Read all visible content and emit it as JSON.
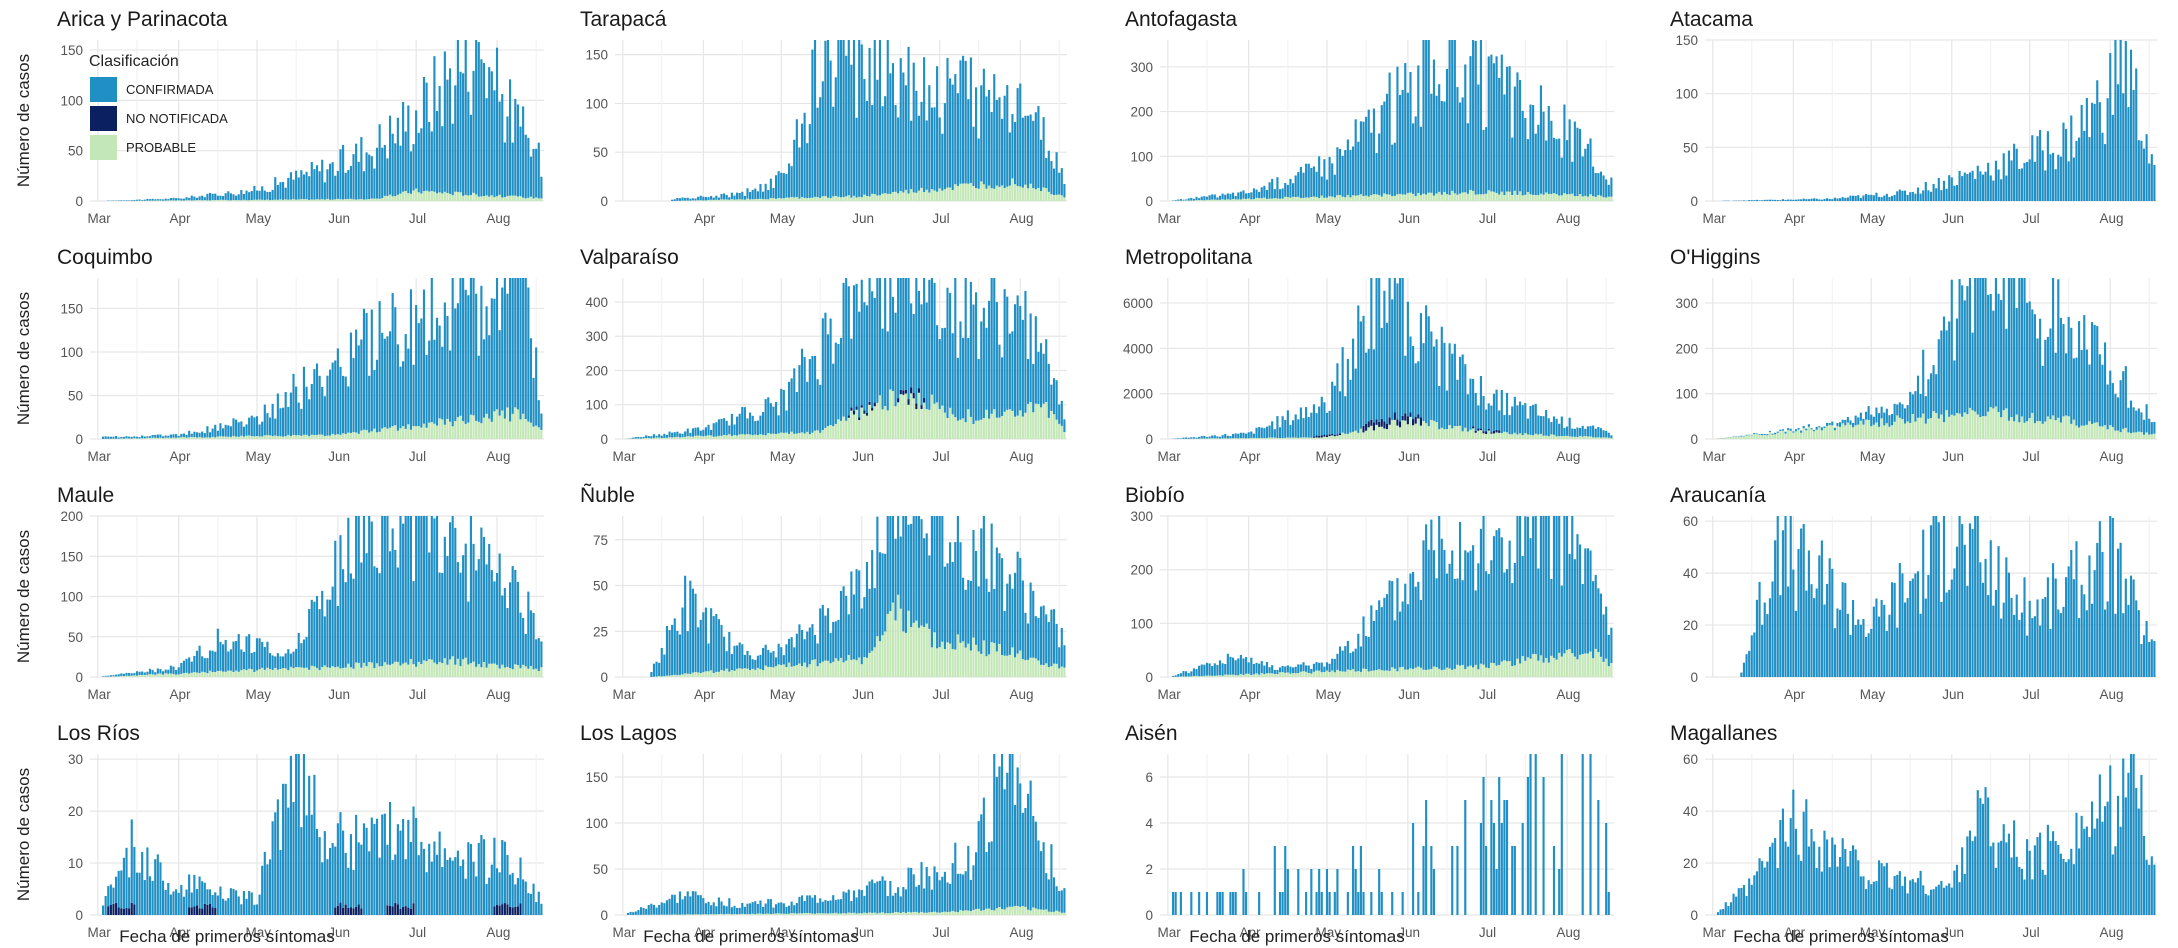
{
  "figure": {
    "ylabel": "Número de casos",
    "xlabel": "Fecha de primeros síntomas",
    "legend": {
      "title": "Clasificación",
      "placement": "inside top-left of first panel",
      "entries": [
        {
          "label": "CONFIRMADA",
          "color": "#1f8fc4"
        },
        {
          "label": "NO NOTIFICADA",
          "color": "#0b2060"
        },
        {
          "label": "PROBABLE",
          "color": "#c3e7b6"
        }
      ]
    },
    "colors": {
      "confirmada": "#1f8fc4",
      "no_notificada": "#0b2060",
      "probable": "#c3e7b6",
      "grid": "#e6e6e6"
    }
  },
  "chart_data": [
    {
      "type": "bar",
      "stacked": true,
      "title": "Arica y Parinacota",
      "xstart": "Mar 3",
      "xticks": [
        "Mar",
        "Apr",
        "May",
        "Jun",
        "Jul",
        "Aug"
      ],
      "ylim": [
        0,
        160
      ],
      "yticks": [
        0,
        50,
        100,
        150
      ],
      "series_summary": [
        {
          "name": "CONFIRMADA",
          "x": [
            "Mar 1",
            "Apr 1",
            "May 1",
            "Jun 1",
            "Jul 1",
            "Jul 25",
            "Aug 1",
            "Aug 18"
          ],
          "y": [
            0,
            2,
            10,
            35,
            75,
            155,
            105,
            35
          ]
        },
        {
          "name": "PROBABLE",
          "x": [
            "Mar 1",
            "Jun 15",
            "Jul 1",
            "Aug 1",
            "Aug 18"
          ],
          "y": [
            0,
            2,
            10,
            5,
            3
          ]
        }
      ]
    },
    {
      "type": "bar",
      "stacked": true,
      "title": "Tarapacá",
      "xstart": "Mar 20",
      "xticks": [
        "Apr",
        "May",
        "Jun",
        "Jul",
        "Aug"
      ],
      "ylim": [
        0,
        165
      ],
      "yticks": [
        0,
        50,
        100,
        150
      ],
      "series_summary": [
        {
          "name": "CONFIRMADA",
          "x": [
            "Mar 20",
            "Apr 15",
            "May 1",
            "May 15",
            "Jun 1",
            "Jul 1",
            "Aug 1",
            "Aug 18"
          ],
          "y": [
            2,
            5,
            20,
            130,
            150,
            100,
            85,
            20
          ]
        },
        {
          "name": "PROBABLE",
          "x": [
            "Mar 20",
            "Jun 1",
            "Aug 1",
            "Aug 18"
          ],
          "y": [
            0,
            5,
            20,
            5
          ]
        }
      ]
    },
    {
      "type": "bar",
      "stacked": true,
      "title": "Antofagasta",
      "xstart": "Mar 3",
      "xticks": [
        "Mar",
        "Apr",
        "May",
        "Jun",
        "Jul",
        "Aug"
      ],
      "ylim": [
        0,
        360
      ],
      "yticks": [
        0,
        100,
        200,
        300
      ],
      "series_summary": [
        {
          "name": "CONFIRMADA",
          "x": [
            "Mar 1",
            "Apr 1",
            "May 1",
            "Jun 1",
            "Jun 15",
            "Jul 1",
            "Aug 1",
            "Aug 18"
          ],
          "y": [
            0,
            15,
            70,
            230,
            330,
            230,
            140,
            40
          ]
        },
        {
          "name": "PROBABLE",
          "x": [
            "Mar 1",
            "Jun 1",
            "Jul 1",
            "Aug 18"
          ],
          "y": [
            0,
            15,
            20,
            10
          ]
        }
      ]
    },
    {
      "type": "bar",
      "stacked": true,
      "title": "Atacama",
      "xstart": "Mar 3",
      "xticks": [
        "Mar",
        "Apr",
        "May",
        "Jun",
        "Jul",
        "Aug"
      ],
      "ylim": [
        0,
        150
      ],
      "yticks": [
        0,
        50,
        100,
        150
      ],
      "series_summary": [
        {
          "name": "CONFIRMADA",
          "x": [
            "Mar 1",
            "Apr 15",
            "May 15",
            "Jun 15",
            "Jul 15",
            "Aug 1",
            "Aug 5",
            "Aug 18"
          ],
          "y": [
            0,
            2,
            8,
            30,
            55,
            100,
            145,
            30
          ]
        }
      ]
    },
    {
      "type": "bar",
      "stacked": true,
      "title": "Coquimbo",
      "xstart": "Mar 3",
      "xticks": [
        "Mar",
        "Apr",
        "May",
        "Jun",
        "Jul",
        "Aug"
      ],
      "ylim": [
        0,
        185
      ],
      "yticks": [
        0,
        50,
        100,
        150
      ],
      "series_summary": [
        {
          "name": "CONFIRMADA",
          "x": [
            "Mar 1",
            "Apr 1",
            "May 1",
            "Jun 1",
            "Jul 1",
            "Aug 1",
            "Aug 10",
            "Aug 18"
          ],
          "y": [
            2,
            3,
            20,
            85,
            120,
            140,
            180,
            30
          ]
        },
        {
          "name": "PROBABLE",
          "x": [
            "Mar 1",
            "Jun 1",
            "Jul 1",
            "Aug 10",
            "Aug 18"
          ],
          "y": [
            0,
            5,
            15,
            30,
            10
          ]
        }
      ]
    },
    {
      "type": "bar",
      "stacked": true,
      "title": "Valparaíso",
      "xstart": "Mar 3",
      "xticks": [
        "Mar",
        "Apr",
        "May",
        "Jun",
        "Jul",
        "Aug"
      ],
      "ylim": [
        0,
        470
      ],
      "yticks": [
        0,
        100,
        200,
        300,
        400
      ],
      "series_summary": [
        {
          "name": "CONFIRMADA",
          "x": [
            "Mar 1",
            "Apr 1",
            "May 1",
            "Jun 1",
            "Jun 15",
            "Jul 1",
            "Aug 1",
            "Aug 18"
          ],
          "y": [
            0,
            20,
            90,
            400,
            420,
            330,
            280,
            40
          ]
        },
        {
          "name": "PROBABLE",
          "x": [
            "Mar 1",
            "May 15",
            "Jun 15",
            "Jul 15",
            "Aug 10",
            "Aug 18"
          ],
          "y": [
            0,
            20,
            130,
            60,
            100,
            20
          ]
        },
        {
          "name": "NO NOTIFICADA",
          "x": [
            "Jun 1",
            "Jun 20"
          ],
          "y": [
            10,
            15
          ]
        }
      ]
    },
    {
      "type": "bar",
      "stacked": true,
      "title": "Metropolitana",
      "xstart": "Mar 3",
      "xticks": [
        "Mar",
        "Apr",
        "May",
        "Jun",
        "Jul",
        "Aug"
      ],
      "ylim": [
        0,
        7100
      ],
      "yticks": [
        0,
        2000,
        4000,
        6000
      ],
      "series_summary": [
        {
          "name": "CONFIRMADA",
          "x": [
            "Mar 1",
            "Apr 1",
            "May 1",
            "May 20",
            "Jun 1",
            "Jul 1",
            "Aug 1",
            "Aug 18"
          ],
          "y": [
            0,
            200,
            1500,
            5500,
            4500,
            1500,
            600,
            200
          ]
        },
        {
          "name": "PROBABLE",
          "x": [
            "Mar 1",
            "May 1",
            "Jun 1",
            "Jul 1",
            "Aug 18"
          ],
          "y": [
            0,
            80,
            800,
            300,
            50
          ]
        },
        {
          "name": "NO NOTIFICADA",
          "x": [
            "May 1",
            "May 20",
            "Jun 1",
            "Jul 1"
          ],
          "y": [
            80,
            300,
            300,
            100
          ]
        }
      ]
    },
    {
      "type": "bar",
      "stacked": true,
      "title": "O'Higgins",
      "xstart": "Mar 3",
      "xticks": [
        "Mar",
        "Apr",
        "May",
        "Jun",
        "Jul",
        "Aug"
      ],
      "ylim": [
        0,
        355
      ],
      "yticks": [
        0,
        100,
        200,
        300
      ],
      "series_summary": [
        {
          "name": "CONFIRMADA",
          "x": [
            "Mar 1",
            "Apr 15",
            "May 15",
            "Jun 15",
            "Jul 1",
            "Aug 1",
            "Aug 18"
          ],
          "y": [
            0,
            5,
            40,
            345,
            250,
            140,
            30
          ]
        },
        {
          "name": "PROBABLE",
          "x": [
            "Mar 1",
            "Jun 15",
            "Jul 15",
            "Aug 18"
          ],
          "y": [
            0,
            60,
            40,
            10
          ]
        }
      ]
    },
    {
      "type": "bar",
      "stacked": true,
      "title": "Maule",
      "xstart": "Mar 3",
      "xticks": [
        "Mar",
        "Apr",
        "May",
        "Jun",
        "Jul",
        "Aug"
      ],
      "ylim": [
        0,
        200
      ],
      "yticks": [
        0,
        50,
        100,
        150,
        200
      ],
      "series_summary": [
        {
          "name": "CONFIRMADA",
          "x": [
            "Mar 1",
            "Apr 1",
            "Apr 15",
            "May 15",
            "Jun 1",
            "Jun 25",
            "Jul 15",
            "Aug 1",
            "Aug 18"
          ],
          "y": [
            0,
            8,
            40,
            20,
            120,
            195,
            150,
            110,
            50
          ]
        },
        {
          "name": "PROBABLE",
          "x": [
            "Mar 1",
            "Jun 15",
            "Jul 15",
            "Aug 18"
          ],
          "y": [
            0,
            15,
            20,
            10
          ]
        }
      ]
    },
    {
      "type": "bar",
      "stacked": true,
      "title": "Ñuble",
      "xstart": "Mar 12",
      "xticks": [
        "Mar",
        "Apr",
        "May",
        "Jun",
        "Jul",
        "Aug"
      ],
      "ylim": [
        0,
        88
      ],
      "yticks": [
        0,
        25,
        50,
        75
      ],
      "series_summary": [
        {
          "name": "CONFIRMADA",
          "x": [
            "Mar 12",
            "Mar 25",
            "Apr 15",
            "May 1",
            "Jun 1",
            "Jun 20",
            "Jul 1",
            "Aug 1",
            "Aug 18"
          ],
          "y": [
            2,
            40,
            10,
            8,
            40,
            80,
            60,
            40,
            15
          ]
        },
        {
          "name": "PROBABLE",
          "x": [
            "Mar 12",
            "Jun 1",
            "Jun 15",
            "Jul 1",
            "Aug 1",
            "Aug 18"
          ],
          "y": [
            0,
            10,
            35,
            20,
            12,
            5
          ]
        }
      ]
    },
    {
      "type": "bar",
      "stacked": true,
      "title": "Biobío",
      "xstart": "Mar 3",
      "xticks": [
        "Mar",
        "Apr",
        "May",
        "Jun",
        "Jul",
        "Aug"
      ],
      "ylim": [
        0,
        300
      ],
      "yticks": [
        0,
        100,
        200,
        300
      ],
      "series_summary": [
        {
          "name": "CONFIRMADA",
          "x": [
            "Mar 1",
            "Mar 25",
            "Apr 15",
            "May 1",
            "Jun 1",
            "Jun 15",
            "Jul 1",
            "Aug 1",
            "Aug 18"
          ],
          "y": [
            0,
            30,
            10,
            15,
            150,
            270,
            200,
            240,
            60
          ]
        },
        {
          "name": "PROBABLE",
          "x": [
            "Mar 1",
            "Jun 1",
            "Jul 1",
            "Aug 10",
            "Aug 18"
          ],
          "y": [
            0,
            15,
            20,
            50,
            20
          ]
        }
      ]
    },
    {
      "type": "bar",
      "stacked": true,
      "title": "Araucanía",
      "xstart": "Mar 12",
      "xticks": [
        "Apr",
        "May",
        "Jun",
        "Jul",
        "Aug"
      ],
      "ylim": [
        0,
        62
      ],
      "yticks": [
        0,
        20,
        40,
        60
      ],
      "series_summary": [
        {
          "name": "CONFIRMADA",
          "x": [
            "Mar 12",
            "Mar 25",
            "Apr 15",
            "May 1",
            "Jun 1",
            "Jul 1",
            "Aug 1",
            "Aug 18"
          ],
          "y": [
            2,
            50,
            35,
            20,
            55,
            25,
            45,
            10
          ]
        }
      ]
    },
    {
      "type": "bar",
      "stacked": true,
      "title": "Los Ríos",
      "xstart": "Mar 3",
      "xticks": [
        "Mar",
        "Apr",
        "May",
        "Jun",
        "Jul",
        "Aug"
      ],
      "ylim": [
        0,
        31
      ],
      "yticks": [
        0,
        10,
        20,
        30
      ],
      "series_summary": [
        {
          "name": "CONFIRMADA",
          "x": [
            "Mar 1",
            "Mar 15",
            "Apr 1",
            "May 1",
            "May 15",
            "Jun 1",
            "Jul 1",
            "Aug 1",
            "Aug 18"
          ],
          "y": [
            0,
            12,
            5,
            3,
            30,
            12,
            15,
            10,
            3
          ]
        },
        {
          "name": "NO NOTIFICADA",
          "x": [
            "Mar 10",
            "Apr 10",
            "Jun 5",
            "Jun 25",
            "Aug 5"
          ],
          "y": [
            2,
            2,
            2,
            2,
            2
          ]
        }
      ]
    },
    {
      "type": "bar",
      "stacked": true,
      "title": "Los Lagos",
      "xstart": "Mar 3",
      "xticks": [
        "Mar",
        "Apr",
        "May",
        "Jun",
        "Jul",
        "Aug"
      ],
      "ylim": [
        0,
        175
      ],
      "yticks": [
        0,
        50,
        100,
        150
      ],
      "series_summary": [
        {
          "name": "CONFIRMADA",
          "x": [
            "Mar 1",
            "Mar 25",
            "Apr 15",
            "May 15",
            "Jun 15",
            "Jul 15",
            "Jul 25",
            "Aug 1",
            "Aug 18"
          ],
          "y": [
            0,
            20,
            10,
            15,
            30,
            60,
            170,
            130,
            20
          ]
        },
        {
          "name": "PROBABLE",
          "x": [
            "Mar 1",
            "Jul 1",
            "Aug 1",
            "Aug 18"
          ],
          "y": [
            0,
            3,
            8,
            3
          ]
        }
      ]
    },
    {
      "type": "bar",
      "stacked": true,
      "title": "Aisén",
      "xstart": "Mar 3",
      "xticks": [
        "Mar",
        "Apr",
        "May",
        "Jun",
        "Jul",
        "Aug"
      ],
      "ylim": [
        0,
        7
      ],
      "yticks": [
        0,
        2,
        4,
        6
      ],
      "series_summary": [
        {
          "name": "CONFIRMADA",
          "x": [
            "Mar 15",
            "Mar 25",
            "Apr 1",
            "May 1",
            "May 20",
            "Jun 15",
            "Jul 1",
            "Jul 15",
            "Aug 1",
            "Aug 5",
            "Aug 18"
          ],
          "y": [
            1,
            1,
            2,
            1,
            2,
            3,
            3,
            6,
            3,
            7,
            1
          ]
        }
      ]
    },
    {
      "type": "bar",
      "stacked": true,
      "title": "Magallanes",
      "xstart": "Mar 3",
      "xticks": [
        "Mar",
        "Apr",
        "May",
        "Jun",
        "Jul",
        "Aug"
      ],
      "ylim": [
        0,
        62
      ],
      "yticks": [
        0,
        20,
        40,
        60
      ],
      "series_summary": [
        {
          "name": "CONFIRMADA",
          "x": [
            "Mar 1",
            "Mar 15",
            "Apr 1",
            "Apr 15",
            "May 1",
            "Jun 1",
            "Jun 10",
            "Jul 1",
            "Aug 1",
            "Aug 10",
            "Aug 18"
          ],
          "y": [
            0,
            10,
            35,
            25,
            15,
            10,
            40,
            20,
            40,
            60,
            15
          ]
        }
      ]
    }
  ]
}
